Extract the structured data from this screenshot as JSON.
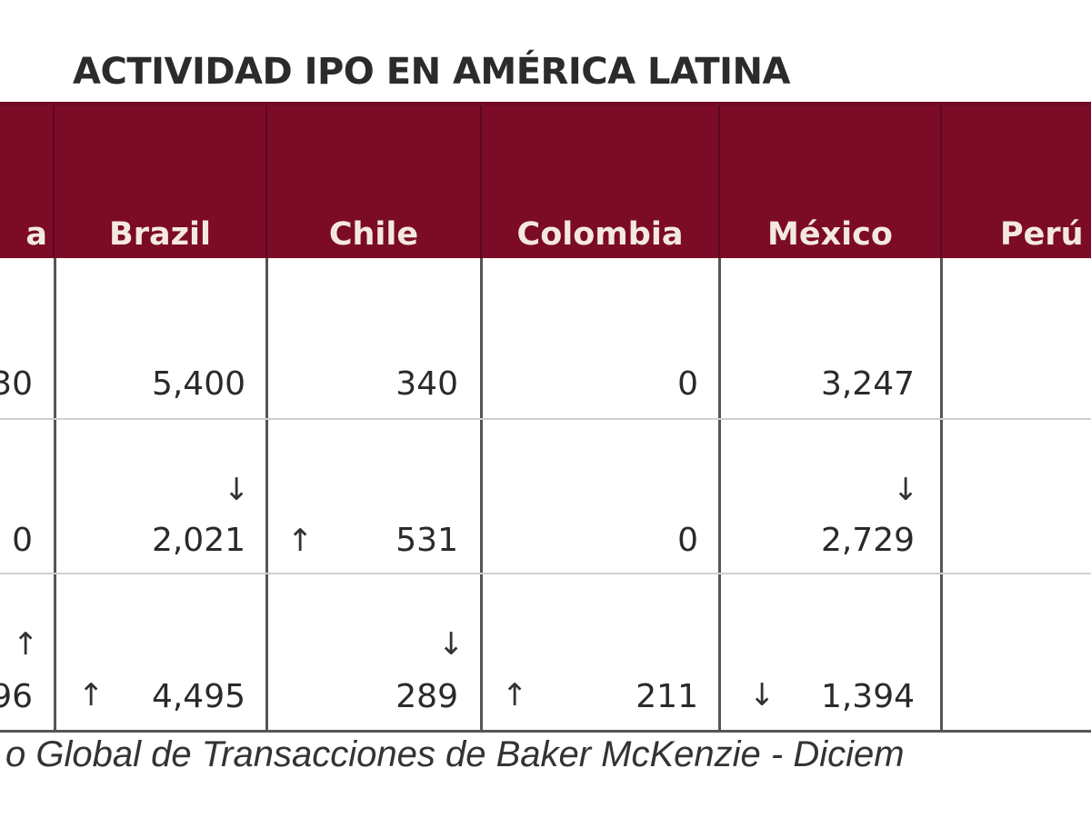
{
  "title": "ACTIVIDAD IPO EN AMÉRICA LATINA",
  "headers": [
    "a",
    "Brazil",
    "Chile",
    "Colombia",
    "México",
    "Perú"
  ],
  "rows": [
    {
      "values": [
        "30",
        "5,400",
        "340",
        "0",
        "3,247"
      ],
      "arrows": [
        {
          "col": 0,
          "symbol": ""
        },
        {
          "col": 1,
          "symbol": ""
        }
      ]
    },
    {
      "values": [
        "0",
        "2,021",
        "531",
        "0",
        "2,729"
      ],
      "arrows": [
        {
          "col": 1,
          "symbol": "↓"
        },
        {
          "col": 2,
          "symbol": "↑"
        },
        {
          "col": 4,
          "symbol": "↓"
        }
      ]
    },
    {
      "values": [
        "96",
        "4,495",
        "289",
        "211",
        "1,394"
      ],
      "arrows": [
        {
          "col": 0,
          "symbol": "↑"
        },
        {
          "col": 1,
          "symbol": "↑"
        },
        {
          "col": 2,
          "symbol": "↓"
        },
        {
          "col": 3,
          "symbol": "↑"
        },
        {
          "col": 4,
          "symbol": "↓"
        }
      ]
    }
  ],
  "source": "o Global de Transacciones de Baker McKenzie - Diciem"
}
